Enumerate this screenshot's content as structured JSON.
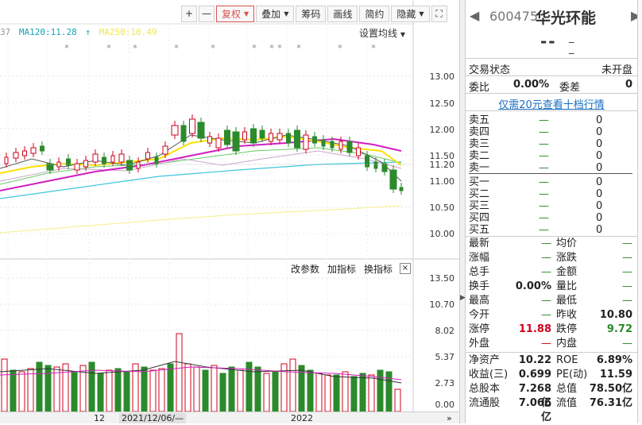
{
  "toolbar": {
    "plus": "+",
    "minus": "—",
    "fuquan": "复权",
    "diejia": "叠加",
    "chouma": "筹码",
    "huaxian": "画线",
    "jianyue": "简约",
    "yincang": "隐藏",
    "fullscreen": "⛶"
  },
  "ma_legend": {
    "partial": "37",
    "ma120": "MA120:11.28",
    "ma250": "MA250:10.49",
    "setting": "设置均线"
  },
  "price_axis": [
    "13.00",
    "12.50",
    "12.00",
    "11.50",
    "11.20",
    "11.00",
    "10.50",
    "10.00"
  ],
  "vol_axis": [
    "13.50",
    "10.70",
    "8.02",
    "5.37",
    "2.73",
    "0.00"
  ],
  "indicator_menu": {
    "modify": "改参数",
    "add": "加指标",
    "switch": "换指标",
    "close": "×"
  },
  "date_bar": {
    "d1": "12",
    "d2": "2021/12/06/—",
    "d3": "2022"
  },
  "stock": {
    "code": "600475",
    "name": "华光环能",
    "price": "--",
    "change1": "_",
    "change2": "_"
  },
  "status": {
    "label": "交易状态",
    "value": "未开盘"
  },
  "ratio": {
    "weibi_label": "委比",
    "weibi": "0.00%",
    "weicha_label": "委差",
    "weicha": "0"
  },
  "level2_link": "仅需20元查看十档行情",
  "sell_orders": [
    {
      "name": "卖五",
      "price": "—",
      "vol": "0"
    },
    {
      "name": "卖四",
      "price": "—",
      "vol": "0"
    },
    {
      "name": "卖三",
      "price": "—",
      "vol": "0"
    },
    {
      "name": "卖二",
      "price": "—",
      "vol": "0"
    },
    {
      "name": "卖一",
      "price": "—",
      "vol": "0"
    }
  ],
  "buy_orders": [
    {
      "name": "买一",
      "price": "—",
      "vol": "0"
    },
    {
      "name": "买二",
      "price": "—",
      "vol": "0"
    },
    {
      "name": "买三",
      "price": "—",
      "vol": "0"
    },
    {
      "name": "买四",
      "price": "—",
      "vol": "0"
    },
    {
      "name": "买五",
      "price": "—",
      "vol": "0"
    }
  ],
  "stats": [
    {
      "k1": "最新",
      "v1": "—",
      "k2": "均价",
      "v2": "—"
    },
    {
      "k1": "涨幅",
      "v1": "—",
      "k2": "涨跌",
      "v2": "—"
    },
    {
      "k1": "总手",
      "v1": "—",
      "k2": "金额",
      "v2": "—"
    },
    {
      "k1": "换手",
      "v1": "0.00%",
      "k2": "量比",
      "v2": "—"
    },
    {
      "k1": "最高",
      "v1": "—",
      "k2": "最低",
      "v2": "—"
    },
    {
      "k1": "今开",
      "v1": "—",
      "k2": "昨收",
      "v2": "10.80"
    },
    {
      "k1": "涨停",
      "v1": "11.88",
      "k2": "跌停",
      "v2": "9.72"
    },
    {
      "k1": "外盘",
      "v1": "—",
      "k2": "内盘",
      "v2": "—"
    },
    {
      "k1": "净资产",
      "v1": "10.22",
      "k2": "ROE",
      "v2": "6.89%"
    },
    {
      "k1": "收益(三)",
      "v1": "0.699",
      "k2": "PE(动)",
      "v2": "11.59"
    },
    {
      "k1": "总股本",
      "v1": "7.268亿",
      "k2": "总值",
      "v2": "78.50亿"
    },
    {
      "k1": "流通股",
      "v1": "7.066亿",
      "k2": "流值",
      "v2": "76.31亿"
    }
  ],
  "colors": {
    "up": "#d0021b",
    "down": "#2b8a2b",
    "accent": "#d9534f",
    "ma120": "#17a2b8",
    "ma250": "#f0e64a"
  }
}
